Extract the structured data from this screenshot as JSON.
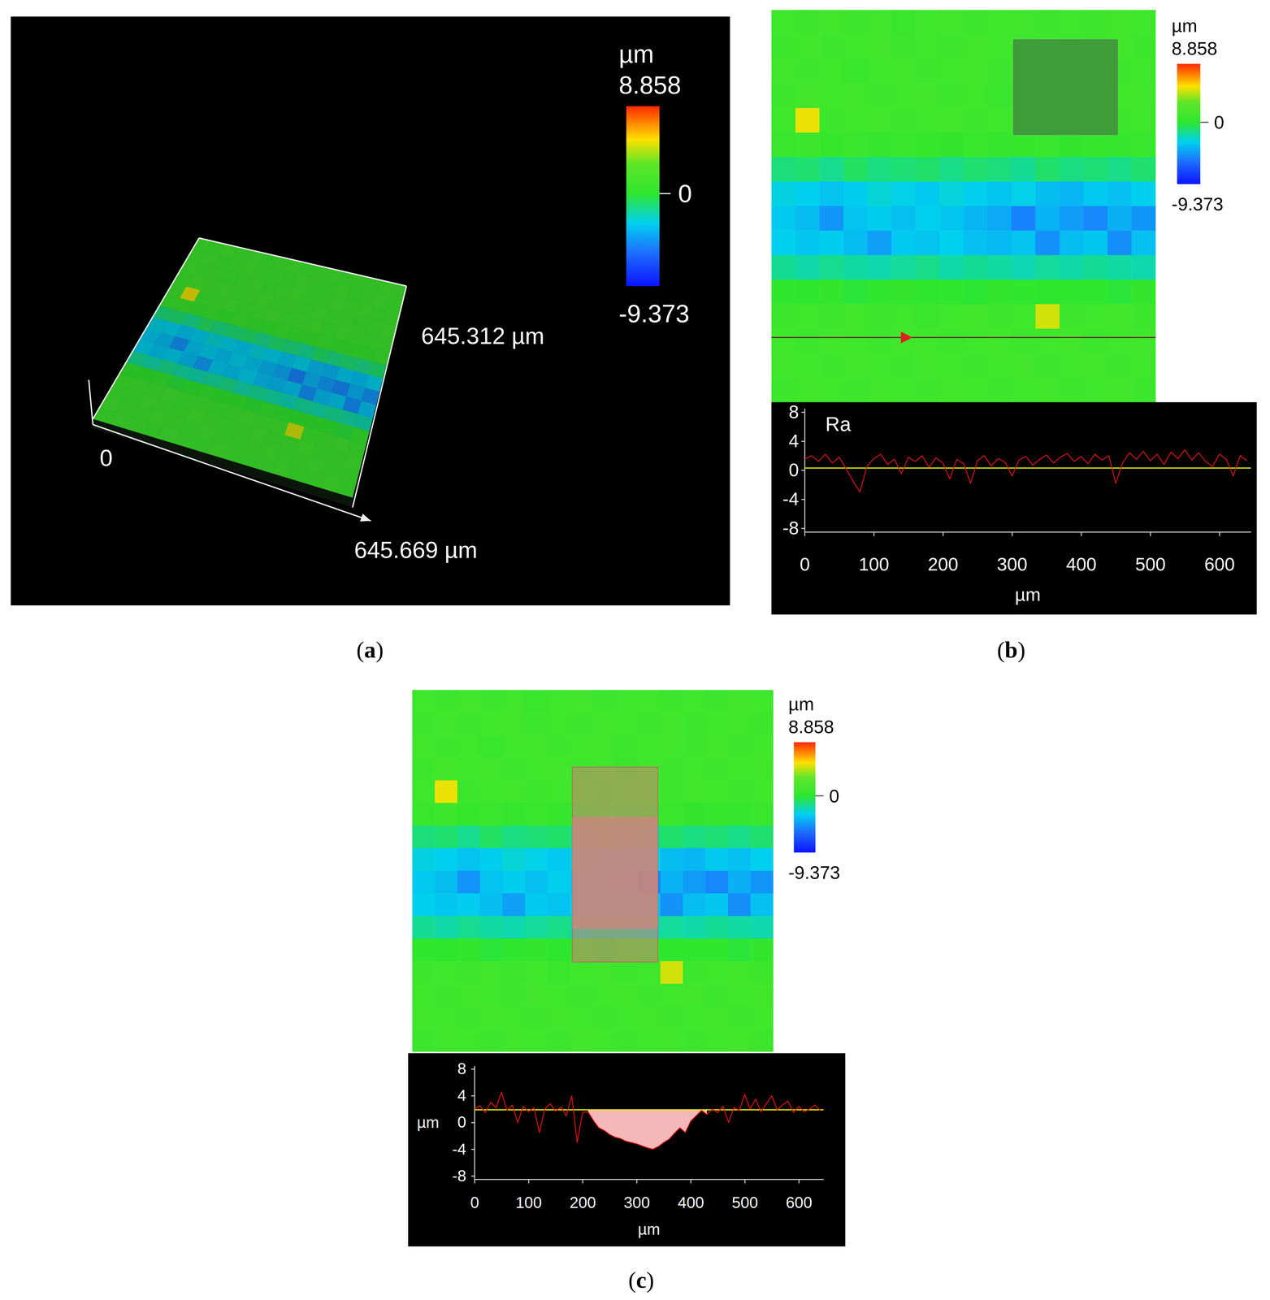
{
  "chart_data": [
    {
      "type": "surface3d",
      "panel": "(a)",
      "xlim": [
        0,
        645.669
      ],
      "ylim": [
        0,
        645.312
      ],
      "xticks": [
        0,
        {
          "value": 645.669,
          "label": "645.669 µm"
        }
      ],
      "yticks": [
        {
          "value": 645.312,
          "label": "645.312 µm"
        }
      ],
      "colorbar": {
        "title": "µm",
        "range": [
          -9.373,
          8.858
        ],
        "ticks": [
          8.858,
          0,
          -9.373
        ]
      },
      "cells": [
        [
          1.0,
          0.8,
          1.2,
          0.9,
          1.1,
          0.7,
          1.0,
          1.2,
          0.9,
          1.0,
          1.1,
          0.8,
          1.0,
          0.9,
          1.2,
          1.0
        ],
        [
          0.9,
          1.1,
          0.8,
          1.0,
          1.2,
          0.9,
          1.0,
          0.8,
          1.1,
          1.0,
          0.9,
          1.2,
          0.8,
          1.0,
          1.1,
          0.9
        ],
        [
          1.1,
          0.9,
          1.0,
          0.6,
          1.0,
          1.1,
          0.8,
          1.0,
          1.2,
          0.9,
          1.0,
          1.1,
          0.9,
          1.2,
          0.8,
          1.0
        ],
        [
          0.8,
          1.3,
          1.0,
          1.1,
          0.9,
          1.0,
          1.2,
          0.9,
          1.0,
          0.7,
          1.1,
          0.9,
          1.0,
          0.8,
          1.0,
          1.1
        ],
        [
          1.0,
          5.2,
          0.9,
          1.0,
          1.1,
          0.8,
          1.0,
          1.1,
          0.9,
          1.0,
          1.2,
          0.8,
          1.1,
          1.0,
          0.9,
          1.0
        ],
        [
          0.6,
          0.8,
          0.5,
          0.7,
          0.4,
          0.6,
          0.5,
          0.3,
          0.6,
          0.4,
          0.5,
          0.7,
          0.3,
          0.5,
          0.4,
          0.6
        ],
        [
          -1.2,
          -1.0,
          -1.5,
          -0.8,
          -1.3,
          -1.1,
          -0.9,
          -1.4,
          -1.0,
          -1.2,
          -1.6,
          -0.9,
          -1.3,
          -1.1,
          -1.4,
          -1.0
        ],
        [
          -2.8,
          -3.0,
          -3.4,
          -3.1,
          -2.6,
          -2.9,
          -3.2,
          -2.7,
          -3.0,
          -3.3,
          -2.9,
          -3.6,
          -3.8,
          -3.2,
          -3.5,
          -3.0
        ],
        [
          -3.2,
          -3.6,
          -4.8,
          -3.4,
          -3.1,
          -3.5,
          -3.0,
          -3.3,
          -3.8,
          -4.2,
          -5.4,
          -3.9,
          -4.6,
          -5.2,
          -4.0,
          -4.8
        ],
        [
          -3.0,
          -3.3,
          -3.1,
          -3.6,
          -4.5,
          -3.2,
          -3.4,
          -3.0,
          -3.5,
          -3.7,
          -3.4,
          -4.9,
          -3.6,
          -3.3,
          -5.0,
          -3.5
        ],
        [
          -1.6,
          -1.9,
          -1.5,
          -1.8,
          -2.0,
          -1.7,
          -1.4,
          -1.9,
          -1.6,
          -1.8,
          -2.1,
          -1.7,
          -1.9,
          -1.6,
          -1.8,
          -2.0
        ],
        [
          0.2,
          0.0,
          0.3,
          -0.2,
          0.1,
          0.3,
          0.0,
          0.2,
          -0.1,
          0.3,
          0.1,
          0.0,
          0.2,
          0.1,
          -0.2,
          0.3
        ],
        [
          0.9,
          1.0,
          0.8,
          1.1,
          0.9,
          1.0,
          0.7,
          1.0,
          1.1,
          0.9,
          1.0,
          4.8,
          0.9,
          1.0,
          1.1,
          0.8
        ],
        [
          1.0,
          0.9,
          1.1,
          1.0,
          0.8,
          1.2,
          1.0,
          0.9,
          1.0,
          1.1,
          0.8,
          1.0,
          1.2,
          0.9,
          1.0,
          1.1
        ],
        [
          1.1,
          1.0,
          0.9,
          1.2,
          1.0,
          0.9,
          1.1,
          1.0,
          0.8,
          1.0,
          1.2,
          0.9,
          1.0,
          1.1,
          0.9,
          1.0
        ],
        [
          0.9,
          1.1,
          1.0,
          0.8,
          1.1,
          1.0,
          0.9,
          1.2,
          1.0,
          0.9,
          1.0,
          1.1,
          0.8,
          1.0,
          1.2,
          0.9
        ]
      ]
    },
    {
      "type": "heatmap",
      "panel": "(b)",
      "colorbar": {
        "title": "µm",
        "range": [
          -9.373,
          8.858
        ],
        "ticks": [
          8.858,
          0,
          -9.373
        ]
      },
      "cells": [
        [
          1.0,
          0.8,
          1.2,
          0.9,
          1.1,
          0.7,
          1.0,
          1.2,
          0.9,
          1.0,
          1.1,
          0.8,
          1.0,
          0.9,
          1.2,
          1.0
        ],
        [
          0.9,
          1.1,
          0.8,
          1.0,
          1.2,
          0.9,
          1.0,
          0.8,
          1.1,
          1.0,
          0.9,
          1.2,
          0.8,
          1.0,
          1.1,
          0.9
        ],
        [
          1.1,
          0.9,
          1.0,
          0.6,
          1.0,
          1.1,
          0.8,
          1.0,
          1.2,
          0.9,
          1.0,
          1.1,
          0.9,
          1.2,
          0.8,
          1.0
        ],
        [
          0.8,
          1.3,
          1.0,
          1.1,
          0.9,
          1.0,
          1.2,
          0.9,
          1.0,
          0.7,
          1.1,
          0.9,
          1.0,
          0.8,
          1.0,
          1.1
        ],
        [
          1.0,
          5.2,
          0.9,
          1.0,
          1.1,
          0.8,
          1.0,
          1.1,
          0.9,
          1.0,
          1.2,
          0.8,
          1.1,
          1.0,
          0.9,
          1.0
        ],
        [
          0.6,
          0.8,
          0.5,
          0.7,
          0.4,
          0.6,
          0.5,
          0.3,
          0.6,
          0.4,
          0.5,
          0.7,
          0.3,
          0.5,
          0.4,
          0.6
        ],
        [
          -1.2,
          -1.0,
          -1.5,
          -0.8,
          -1.3,
          -1.1,
          -0.9,
          -1.4,
          -1.0,
          -1.2,
          -1.6,
          -0.9,
          -1.3,
          -1.1,
          -1.4,
          -1.0
        ],
        [
          -2.8,
          -3.0,
          -3.4,
          -3.1,
          -2.6,
          -2.9,
          -3.2,
          -2.7,
          -3.0,
          -3.3,
          -2.9,
          -3.6,
          -3.8,
          -3.2,
          -3.5,
          -3.0
        ],
        [
          -3.2,
          -3.6,
          -4.8,
          -3.4,
          -3.1,
          -3.5,
          -3.0,
          -3.3,
          -3.8,
          -4.2,
          -5.4,
          -3.9,
          -4.6,
          -5.2,
          -4.0,
          -4.8
        ],
        [
          -3.0,
          -3.3,
          -3.1,
          -3.6,
          -4.5,
          -3.2,
          -3.4,
          -3.0,
          -3.5,
          -3.7,
          -3.4,
          -4.9,
          -3.6,
          -3.3,
          -5.0,
          -3.5
        ],
        [
          -1.6,
          -1.9,
          -1.5,
          -1.8,
          -2.0,
          -1.7,
          -1.4,
          -1.9,
          -1.6,
          -1.8,
          -2.1,
          -1.7,
          -1.9,
          -1.6,
          -1.8,
          -2.0
        ],
        [
          0.2,
          0.0,
          0.3,
          -0.2,
          0.1,
          0.3,
          0.0,
          0.2,
          -0.1,
          0.3,
          0.1,
          0.0,
          0.2,
          0.1,
          -0.2,
          0.3
        ],
        [
          0.9,
          1.0,
          0.8,
          1.1,
          0.9,
          1.0,
          0.7,
          1.0,
          1.1,
          0.9,
          1.0,
          4.8,
          0.9,
          1.0,
          1.1,
          0.8
        ],
        [
          1.0,
          0.9,
          1.1,
          1.0,
          0.8,
          1.2,
          1.0,
          0.9,
          1.0,
          1.1,
          0.8,
          1.0,
          1.2,
          0.9,
          1.0,
          1.1
        ],
        [
          1.1,
          1.0,
          0.9,
          1.2,
          1.0,
          0.9,
          1.1,
          1.0,
          0.8,
          1.0,
          1.2,
          0.9,
          1.0,
          1.1,
          0.9,
          1.0
        ],
        [
          0.9,
          1.1,
          1.0,
          0.8,
          1.1,
          1.0,
          0.9,
          1.2,
          1.0,
          0.9,
          1.0,
          1.1,
          0.8,
          1.0,
          1.2,
          0.9
        ]
      ],
      "profile": {
        "type": "line",
        "annotation": "Ra",
        "x": [
          0,
          10,
          20,
          30,
          40,
          50,
          60,
          70,
          80,
          90,
          100,
          110,
          120,
          130,
          140,
          150,
          160,
          170,
          180,
          190,
          200,
          210,
          220,
          230,
          240,
          250,
          260,
          270,
          280,
          290,
          300,
          310,
          320,
          330,
          340,
          350,
          360,
          370,
          380,
          390,
          400,
          410,
          420,
          430,
          440,
          450,
          460,
          470,
          480,
          490,
          500,
          510,
          520,
          530,
          540,
          550,
          560,
          570,
          580,
          590,
          600,
          610,
          620,
          630,
          640
        ],
        "series": [
          {
            "color": "#d41414",
            "values": [
              1.5,
              2.0,
              1.2,
              2.2,
              1.0,
              1.8,
              0.2,
              -1.5,
              -3.0,
              0.5,
              1.6,
              2.2,
              0.8,
              1.5,
              -0.5,
              1.8,
              1.2,
              2.0,
              0.4,
              1.7,
              1.0,
              -1.2,
              1.5,
              0.9,
              -1.8,
              1.3,
              2.0,
              0.6,
              1.6,
              1.1,
              -0.8,
              1.4,
              1.9,
              0.7,
              1.5,
              2.1,
              1.0,
              1.8,
              2.3,
              1.2,
              1.9,
              0.9,
              2.2,
              1.4,
              2.0,
              -1.8,
              1.0,
              2.4,
              1.5,
              2.6,
              1.3,
              2.2,
              0.8,
              2.5,
              1.6,
              2.8,
              1.4,
              2.4,
              1.2,
              0.5,
              2.2,
              1.5,
              -0.8,
              2.0,
              1.3
            ]
          }
        ],
        "reference_line": 0.3,
        "xlim": [
          0,
          645.669
        ],
        "ylim": [
          -8.5,
          8.5
        ],
        "xticks": [
          0,
          100,
          200,
          300,
          400,
          500,
          600
        ],
        "yticks": [
          -8,
          -4,
          0,
          4,
          8
        ],
        "xlabel": "µm"
      }
    },
    {
      "type": "heatmap",
      "panel": "(c)",
      "colorbar": {
        "title": "µm",
        "range": [
          -9.373,
          8.858
        ],
        "ticks": [
          8.858,
          0,
          -9.373
        ]
      },
      "cells": [
        [
          1.0,
          0.8,
          1.2,
          0.9,
          1.1,
          0.7,
          1.0,
          1.2,
          0.9,
          1.0,
          1.1,
          0.8,
          1.0,
          0.9,
          1.2,
          1.0
        ],
        [
          0.9,
          1.1,
          0.8,
          1.0,
          1.2,
          0.9,
          1.0,
          0.8,
          1.1,
          1.0,
          0.9,
          1.2,
          0.8,
          1.0,
          1.1,
          0.9
        ],
        [
          1.1,
          0.9,
          1.0,
          0.6,
          1.0,
          1.1,
          0.8,
          1.0,
          1.2,
          0.9,
          1.0,
          1.1,
          0.9,
          1.2,
          0.8,
          1.0
        ],
        [
          0.8,
          1.3,
          1.0,
          1.1,
          0.9,
          1.0,
          1.2,
          0.9,
          1.0,
          0.7,
          1.1,
          0.9,
          1.0,
          0.8,
          1.0,
          1.1
        ],
        [
          1.0,
          5.2,
          0.9,
          1.0,
          1.1,
          0.8,
          1.0,
          1.1,
          0.9,
          1.0,
          1.2,
          0.8,
          1.1,
          1.0,
          0.9,
          1.0
        ],
        [
          0.6,
          0.8,
          0.5,
          0.7,
          0.4,
          0.6,
          0.5,
          0.3,
          0.6,
          0.4,
          0.5,
          0.7,
          0.3,
          0.5,
          0.4,
          0.6
        ],
        [
          -1.2,
          -1.0,
          -1.5,
          -0.8,
          -1.3,
          -1.1,
          -0.9,
          -1.4,
          -1.0,
          -1.2,
          -1.6,
          -0.9,
          -1.3,
          -1.1,
          -1.4,
          -1.0
        ],
        [
          -2.8,
          -3.0,
          -3.4,
          -3.1,
          -2.6,
          -2.9,
          -3.2,
          -2.7,
          -3.0,
          -3.3,
          -2.9,
          -3.6,
          -3.8,
          -3.2,
          -3.5,
          -3.0
        ],
        [
          -3.2,
          -3.6,
          -4.8,
          -3.4,
          -3.1,
          -3.5,
          -3.0,
          -3.3,
          -3.8,
          -4.2,
          -5.4,
          -3.9,
          -4.6,
          -5.2,
          -4.0,
          -4.8
        ],
        [
          -3.0,
          -3.3,
          -3.1,
          -3.6,
          -4.5,
          -3.2,
          -3.4,
          -3.0,
          -3.5,
          -3.7,
          -3.4,
          -4.9,
          -3.6,
          -3.3,
          -5.0,
          -3.5
        ],
        [
          -1.6,
          -1.9,
          -1.5,
          -1.8,
          -2.0,
          -1.7,
          -1.4,
          -1.9,
          -1.6,
          -1.8,
          -2.1,
          -1.7,
          -1.9,
          -1.6,
          -1.8,
          -2.0
        ],
        [
          0.2,
          0.0,
          0.3,
          -0.2,
          0.1,
          0.3,
          0.0,
          0.2,
          -0.1,
          0.3,
          0.1,
          0.0,
          0.2,
          0.1,
          -0.2,
          0.3
        ],
        [
          0.9,
          1.0,
          0.8,
          1.1,
          0.9,
          1.0,
          0.7,
          1.0,
          1.1,
          0.9,
          1.0,
          4.8,
          0.9,
          1.0,
          1.1,
          0.8
        ],
        [
          1.0,
          0.9,
          1.1,
          1.0,
          0.8,
          1.2,
          1.0,
          0.9,
          1.0,
          1.1,
          0.8,
          1.0,
          1.2,
          0.9,
          1.0,
          1.1
        ],
        [
          1.1,
          1.0,
          0.9,
          1.2,
          1.0,
          0.9,
          1.1,
          1.0,
          0.8,
          1.0,
          1.2,
          0.9,
          1.0,
          1.1,
          0.9,
          1.0
        ],
        [
          0.9,
          1.1,
          1.0,
          0.8,
          1.1,
          1.0,
          0.9,
          1.2,
          1.0,
          0.9,
          1.0,
          1.1,
          0.8,
          1.0,
          1.2,
          0.9
        ]
      ],
      "profile": {
        "type": "line",
        "x": [
          0,
          10,
          20,
          30,
          40,
          50,
          60,
          70,
          80,
          90,
          100,
          110,
          120,
          130,
          140,
          150,
          160,
          170,
          180,
          190,
          200,
          210,
          220,
          230,
          240,
          250,
          260,
          270,
          280,
          290,
          300,
          310,
          320,
          330,
          340,
          350,
          360,
          370,
          380,
          390,
          400,
          410,
          420,
          430,
          440,
          450,
          460,
          470,
          480,
          490,
          500,
          510,
          520,
          530,
          540,
          550,
          560,
          570,
          580,
          590,
          600,
          610,
          620,
          630,
          640
        ],
        "series": [
          {
            "color": "#e01010",
            "values": [
              2.0,
              2.5,
              1.5,
              3.0,
              2.2,
              4.5,
              1.8,
              2.6,
              0.0,
              2.4,
              1.6,
              2.2,
              -1.5,
              2.0,
              2.8,
              1.7,
              2.3,
              1.0,
              4.0,
              -3.0,
              1.5,
              1.6,
              0.3,
              -0.8,
              -1.2,
              -1.8,
              -2.2,
              -2.4,
              -2.8,
              -3.0,
              -3.2,
              -3.5,
              -3.8,
              -4.0,
              -3.6,
              -3.0,
              -2.5,
              -1.6,
              -0.8,
              -1.5,
              0.2,
              1.0,
              1.8,
              1.2,
              2.0,
              1.5,
              2.4,
              0.0,
              2.2,
              1.8,
              4.2,
              2.0,
              3.5,
              1.6,
              2.8,
              4.0,
              1.9,
              2.6,
              3.2,
              1.5,
              2.4,
              1.6,
              2.0,
              2.6,
              1.8
            ]
          }
        ],
        "reference_line": 1.9,
        "area_range": [
          210,
          430
        ],
        "xlim": [
          0,
          645.669
        ],
        "ylim": [
          -8.5,
          8.5
        ],
        "xticks": [
          0,
          100,
          200,
          300,
          400,
          500,
          600
        ],
        "yticks": [
          -8,
          -4,
          0,
          4,
          8
        ],
        "xlabel": "µm",
        "ylabel": "µm"
      }
    }
  ]
}
